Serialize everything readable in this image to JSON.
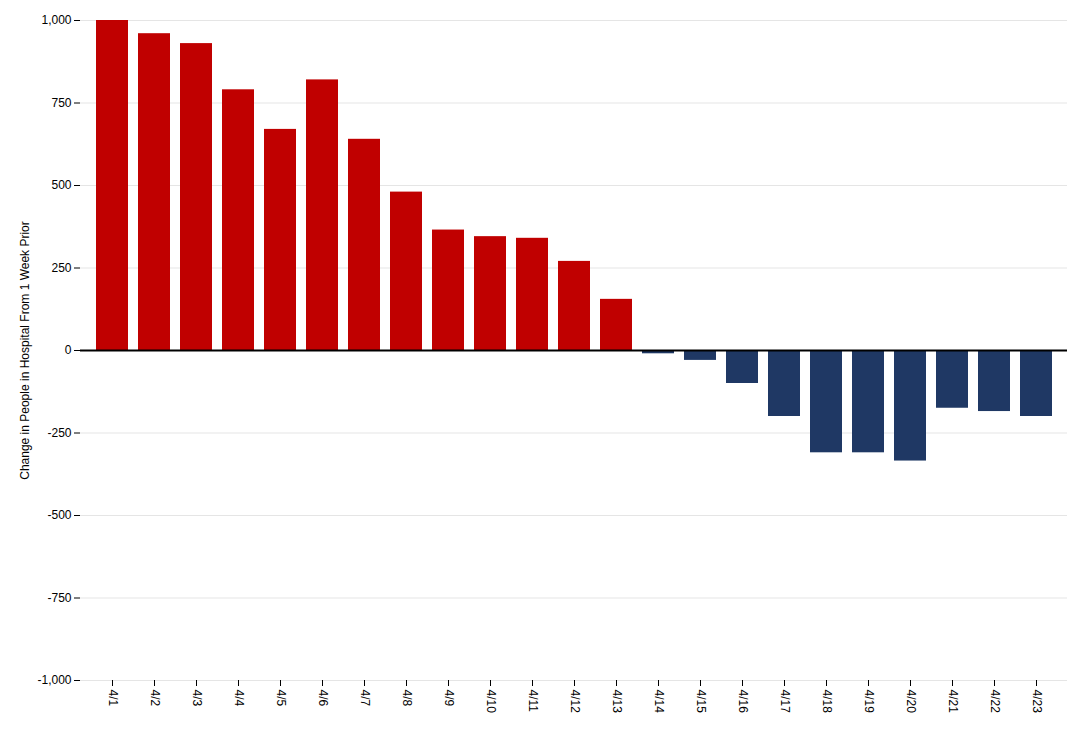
{
  "chart_data": {
    "type": "bar",
    "categories": [
      "4/1",
      "4/2",
      "4/3",
      "4/4",
      "4/5",
      "4/6",
      "4/7",
      "4/8",
      "4/9",
      "4/10",
      "4/11",
      "4/12",
      "4/13",
      "4/14",
      "4/15",
      "4/16",
      "4/17",
      "4/18",
      "4/19",
      "4/20",
      "4/21",
      "4/22",
      "4/23"
    ],
    "values": [
      1000,
      960,
      930,
      790,
      670,
      820,
      640,
      480,
      365,
      345,
      340,
      270,
      155,
      -10,
      -30,
      -100,
      -200,
      -310,
      -310,
      -335,
      -175,
      -185,
      -200
    ],
    "colors": [
      "#c00000",
      "#c00000",
      "#c00000",
      "#c00000",
      "#c00000",
      "#c00000",
      "#c00000",
      "#c00000",
      "#c00000",
      "#c00000",
      "#c00000",
      "#c00000",
      "#c00000",
      "#1f3864",
      "#1f3864",
      "#1f3864",
      "#1f3864",
      "#1f3864",
      "#1f3864",
      "#1f3864",
      "#1f3864",
      "#1f3864",
      "#1f3864"
    ],
    "ylabel": "Change in People in Hospital From 1 Week Prior",
    "ylim": [
      -1000,
      1000
    ],
    "yticks": [
      {
        "value": -1000,
        "label": "-1,000"
      },
      -750,
      -500,
      -250,
      0,
      250,
      500,
      750,
      {
        "value": 1000,
        "label": "1,000"
      }
    ],
    "grid": true
  }
}
